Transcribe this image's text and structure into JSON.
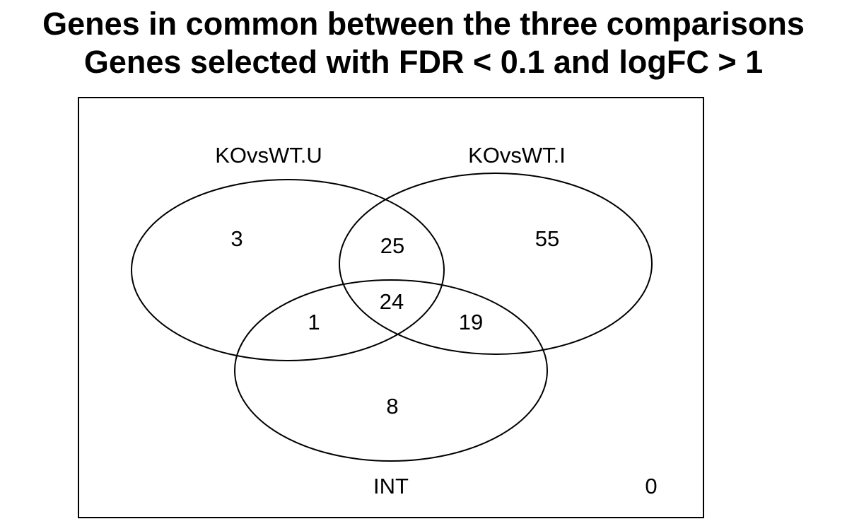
{
  "title": "Genes in common between the three comparisons",
  "subtitle": "Genes selected with FDR < 0.1 and logFC > 1",
  "sets": [
    {
      "name": "KOvsWT.U"
    },
    {
      "name": "KOvsWT.I"
    },
    {
      "name": "INT"
    }
  ],
  "regions": {
    "only_U": "3",
    "U_and_I": "25",
    "only_I": "55",
    "U_I_INT": "24",
    "U_and_INT": "1",
    "I_and_INT": "19",
    "only_INT": "8",
    "none": "0"
  },
  "colors": {
    "stroke": "#000000",
    "background": "#ffffff"
  }
}
